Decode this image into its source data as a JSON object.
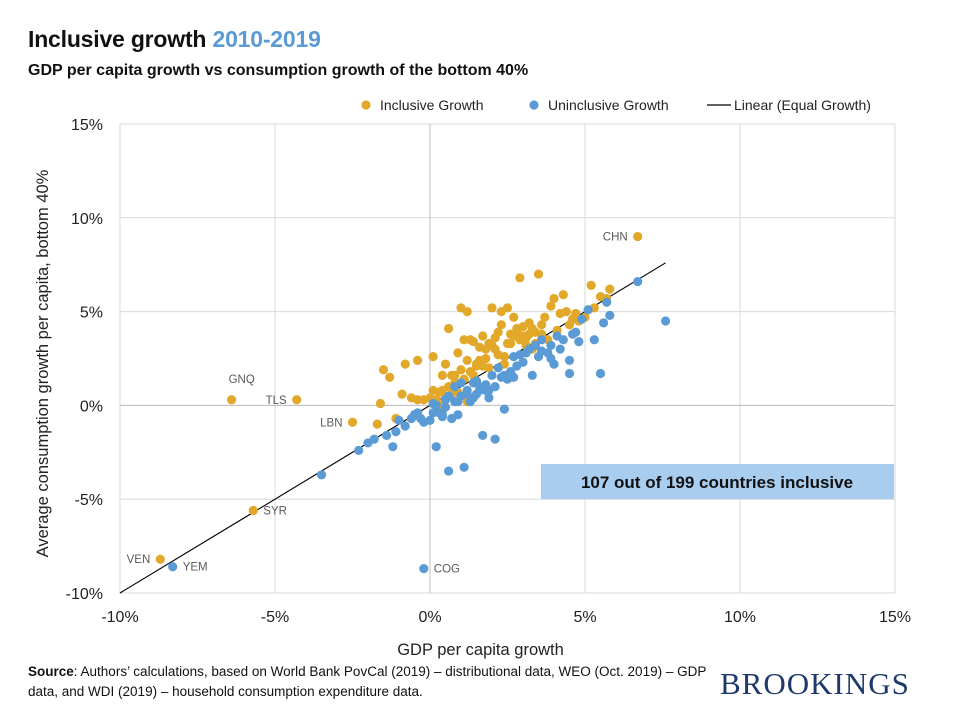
{
  "header": {
    "title_main": "Inclusive growth",
    "title_years": "2010-2019",
    "subtitle": "GDP per capita growth vs consumption growth of the bottom 40%"
  },
  "footer": {
    "source_label": "Source",
    "source_text": ": Authors’ calculations, based on World Bank PovCal (2019) – distributional data, WEO (Oct. 2019) – GDP data, and WDI (2019) – household consumption expenditure data.",
    "brand": "BROOKINGS"
  },
  "colors": {
    "inclusive": "#e2a829",
    "uninclusive": "#5b9bd5",
    "line": "#000000",
    "grid": "#d9d9d9",
    "callout_bg": "#a9cdef",
    "title_accent": "#5b9bd5",
    "brand": "#1f3a6a"
  },
  "chart_data": {
    "type": "scatter",
    "xlabel": "GDP per capita growth",
    "ylabel": "Average consumption growth per capita, bottom 40%",
    "xlim": [
      -0.1,
      0.15
    ],
    "ylim": [
      -0.1,
      0.15
    ],
    "xticks": [
      -0.1,
      -0.05,
      0,
      0.05,
      0.1,
      0.15
    ],
    "xtick_labels": [
      "-10%",
      "-5%",
      "0%",
      "5%",
      "10%",
      "15%"
    ],
    "yticks": [
      -0.1,
      -0.05,
      0,
      0.05,
      0.1,
      0.15
    ],
    "ytick_labels": [
      "-10%",
      "-5%",
      "0%",
      "5%",
      "10%",
      "15%"
    ],
    "grid": true,
    "legend_position": "top",
    "legend": [
      "Inclusive Growth",
      "Uninclusive Growth",
      "Linear (Equal Growth)"
    ],
    "callout": "107 out of 199 countries inclusive",
    "reference_line": {
      "name": "Linear (Equal Growth)",
      "x": [
        -0.1,
        0.076
      ],
      "y": [
        -0.1,
        0.076
      ]
    },
    "labels": [
      {
        "text": "CHN",
        "x": 0.067,
        "y": 0.09,
        "side": "left"
      },
      {
        "text": "GNQ",
        "x": -0.064,
        "y": 0.003,
        "side": "above"
      },
      {
        "text": "TLS",
        "x": -0.043,
        "y": 0.003,
        "side": "left"
      },
      {
        "text": "LBN",
        "x": -0.025,
        "y": -0.009,
        "side": "left"
      },
      {
        "text": "SYR",
        "x": -0.057,
        "y": -0.056,
        "side": "right"
      },
      {
        "text": "VEN",
        "x": -0.087,
        "y": -0.082,
        "side": "left"
      },
      {
        "text": "YEM",
        "x": -0.083,
        "y": -0.086,
        "side": "right"
      },
      {
        "text": "COG",
        "x": -0.002,
        "y": -0.087,
        "side": "right"
      }
    ],
    "series": [
      {
        "name": "Inclusive Growth",
        "points": [
          [
            0.067,
            0.09
          ],
          [
            -0.064,
            0.003
          ],
          [
            -0.043,
            0.003
          ],
          [
            -0.025,
            -0.009
          ],
          [
            -0.057,
            -0.056
          ],
          [
            -0.087,
            -0.082
          ],
          [
            -0.016,
            0.001
          ],
          [
            -0.017,
            -0.01
          ],
          [
            -0.011,
            -0.007
          ],
          [
            -0.009,
            0.006
          ],
          [
            -0.006,
            0.004
          ],
          [
            -0.004,
            0.003
          ],
          [
            -0.002,
            0.003
          ],
          [
            0.0,
            0.004
          ],
          [
            0.001,
            0.008
          ],
          [
            0.003,
            0.007
          ],
          [
            0.004,
            0.016
          ],
          [
            0.005,
            0.022
          ],
          [
            0.006,
            0.01
          ],
          [
            0.007,
            0.016
          ],
          [
            0.008,
            0.012
          ],
          [
            0.009,
            0.028
          ],
          [
            0.01,
            0.019
          ],
          [
            0.011,
            0.014
          ],
          [
            0.012,
            0.024
          ],
          [
            0.013,
            0.018
          ],
          [
            0.014,
            0.034
          ],
          [
            0.015,
            0.022
          ],
          [
            0.016,
            0.031
          ],
          [
            0.017,
            0.037
          ],
          [
            0.018,
            0.025
          ],
          [
            0.019,
            0.02
          ],
          [
            0.02,
            0.032
          ],
          [
            0.021,
            0.036
          ],
          [
            0.022,
            0.027
          ],
          [
            0.023,
            0.043
          ],
          [
            0.024,
            0.026
          ],
          [
            0.025,
            0.052
          ],
          [
            0.026,
            0.033
          ],
          [
            0.027,
            0.047
          ],
          [
            0.028,
            0.039
          ],
          [
            0.029,
            0.035
          ],
          [
            0.03,
            0.042
          ],
          [
            0.031,
            0.036
          ],
          [
            0.032,
            0.044
          ],
          [
            0.033,
            0.03
          ],
          [
            0.034,
            0.039
          ],
          [
            0.035,
            0.07
          ],
          [
            0.036,
            0.038
          ],
          [
            0.038,
            0.035
          ],
          [
            0.04,
            0.057
          ],
          [
            0.042,
            0.049
          ],
          [
            0.043,
            0.059
          ],
          [
            0.044,
            0.05
          ],
          [
            0.046,
            0.046
          ],
          [
            0.047,
            0.049
          ],
          [
            0.052,
            0.064
          ],
          [
            0.055,
            0.058
          ],
          [
            0.058,
            0.062
          ],
          [
            0.029,
            0.068
          ],
          [
            0.01,
            0.052
          ],
          [
            0.012,
            0.05
          ],
          [
            0.006,
            0.041
          ],
          [
            -0.004,
            0.024
          ],
          [
            -0.008,
            0.022
          ],
          [
            -0.013,
            0.015
          ],
          [
            -0.015,
            0.019
          ],
          [
            0.001,
            0.026
          ],
          [
            0.003,
            0.0
          ],
          [
            0.005,
            0.004
          ],
          [
            0.008,
            0.016
          ],
          [
            0.009,
            0.007
          ],
          [
            0.011,
            0.035
          ],
          [
            0.013,
            0.035
          ],
          [
            0.015,
            0.021
          ],
          [
            0.016,
            0.024
          ],
          [
            0.018,
            0.03
          ],
          [
            0.019,
            0.033
          ],
          [
            0.02,
            0.052
          ],
          [
            0.022,
            0.039
          ],
          [
            0.023,
            0.05
          ],
          [
            0.024,
            0.022
          ],
          [
            0.026,
            0.038
          ],
          [
            0.027,
            0.037
          ],
          [
            0.028,
            0.041
          ],
          [
            0.031,
            0.032
          ],
          [
            0.033,
            0.041
          ],
          [
            0.034,
            0.033
          ],
          [
            0.036,
            0.043
          ],
          [
            0.037,
            0.047
          ],
          [
            0.039,
            0.053
          ],
          [
            0.041,
            0.04
          ],
          [
            0.045,
            0.043
          ],
          [
            0.048,
            0.045
          ],
          [
            0.05,
            0.047
          ],
          [
            0.053,
            0.052
          ],
          [
            0.057,
            0.057
          ],
          [
            0.002,
            0.003
          ],
          [
            0.004,
            0.008
          ],
          [
            0.007,
            0.006
          ],
          [
            0.012,
            0.002
          ],
          [
            0.014,
            0.016
          ],
          [
            0.017,
            0.021
          ],
          [
            0.021,
            0.03
          ],
          [
            0.025,
            0.033
          ],
          [
            0.03,
            0.037
          ],
          [
            0.032,
            0.038
          ]
        ]
      },
      {
        "name": "Uninclusive Growth",
        "points": [
          [
            -0.083,
            -0.086
          ],
          [
            -0.002,
            -0.087
          ],
          [
            -0.035,
            -0.037
          ],
          [
            -0.023,
            -0.024
          ],
          [
            -0.02,
            -0.02
          ],
          [
            -0.018,
            -0.018
          ],
          [
            -0.012,
            -0.022
          ],
          [
            -0.011,
            -0.014
          ],
          [
            -0.008,
            -0.011
          ],
          [
            -0.006,
            -0.007
          ],
          [
            -0.004,
            -0.004
          ],
          [
            -0.002,
            -0.009
          ],
          [
            0.001,
            -0.004
          ],
          [
            0.002,
            -0.022
          ],
          [
            0.003,
            -0.004
          ],
          [
            0.004,
            -0.006
          ],
          [
            0.005,
            -0.001
          ],
          [
            0.006,
            -0.035
          ],
          [
            0.007,
            -0.007
          ],
          [
            0.008,
            0.01
          ],
          [
            0.009,
            -0.005
          ],
          [
            0.01,
            0.005
          ],
          [
            0.011,
            -0.033
          ],
          [
            0.012,
            0.008
          ],
          [
            0.013,
            0.002
          ],
          [
            0.014,
            0.004
          ],
          [
            0.015,
            0.013
          ],
          [
            0.016,
            0.01
          ],
          [
            0.017,
            -0.016
          ],
          [
            0.018,
            0.011
          ],
          [
            0.019,
            0.004
          ],
          [
            0.02,
            0.016
          ],
          [
            0.021,
            -0.018
          ],
          [
            0.022,
            0.02
          ],
          [
            0.023,
            0.015
          ],
          [
            0.024,
            -0.002
          ],
          [
            0.025,
            0.014
          ],
          [
            0.026,
            0.018
          ],
          [
            0.027,
            0.015
          ],
          [
            0.028,
            0.021
          ],
          [
            0.029,
            0.027
          ],
          [
            0.03,
            0.023
          ],
          [
            0.031,
            0.028
          ],
          [
            0.033,
            0.016
          ],
          [
            0.034,
            0.032
          ],
          [
            0.035,
            0.026
          ],
          [
            0.036,
            0.035
          ],
          [
            0.038,
            0.028
          ],
          [
            0.039,
            0.032
          ],
          [
            0.04,
            0.022
          ],
          [
            0.041,
            0.037
          ],
          [
            0.042,
            0.03
          ],
          [
            0.043,
            0.035
          ],
          [
            0.045,
            0.017
          ],
          [
            0.046,
            0.038
          ],
          [
            0.047,
            0.039
          ],
          [
            0.048,
            0.034
          ],
          [
            0.049,
            0.046
          ],
          [
            0.051,
            0.051
          ],
          [
            0.053,
            0.035
          ],
          [
            0.055,
            0.017
          ],
          [
            0.056,
            0.044
          ],
          [
            0.057,
            0.055
          ],
          [
            0.058,
            0.048
          ],
          [
            0.067,
            0.066
          ],
          [
            0.076,
            0.045
          ],
          [
            0.045,
            0.024
          ],
          [
            0.039,
            0.025
          ],
          [
            0.036,
            0.029
          ],
          [
            0.032,
            0.03
          ],
          [
            0.027,
            0.026
          ],
          [
            0.021,
            0.01
          ],
          [
            0.018,
            0.008
          ],
          [
            0.016,
            0.008
          ],
          [
            0.014,
            0.012
          ],
          [
            0.012,
            0.006
          ],
          [
            0.01,
            0.012
          ],
          [
            0.008,
            0.002
          ],
          [
            0.006,
            0.005
          ],
          [
            0.004,
            -0.005
          ],
          [
            0.002,
            0.0
          ],
          [
            0.0,
            -0.008
          ],
          [
            -0.003,
            -0.007
          ],
          [
            -0.005,
            -0.005
          ],
          [
            -0.01,
            -0.008
          ],
          [
            -0.014,
            -0.016
          ],
          [
            0.001,
            0.001
          ],
          [
            0.005,
            0.003
          ],
          [
            0.009,
            0.002
          ],
          [
            0.015,
            0.006
          ],
          [
            0.019,
            0.008
          ],
          [
            0.024,
            0.016
          ]
        ]
      }
    ]
  }
}
